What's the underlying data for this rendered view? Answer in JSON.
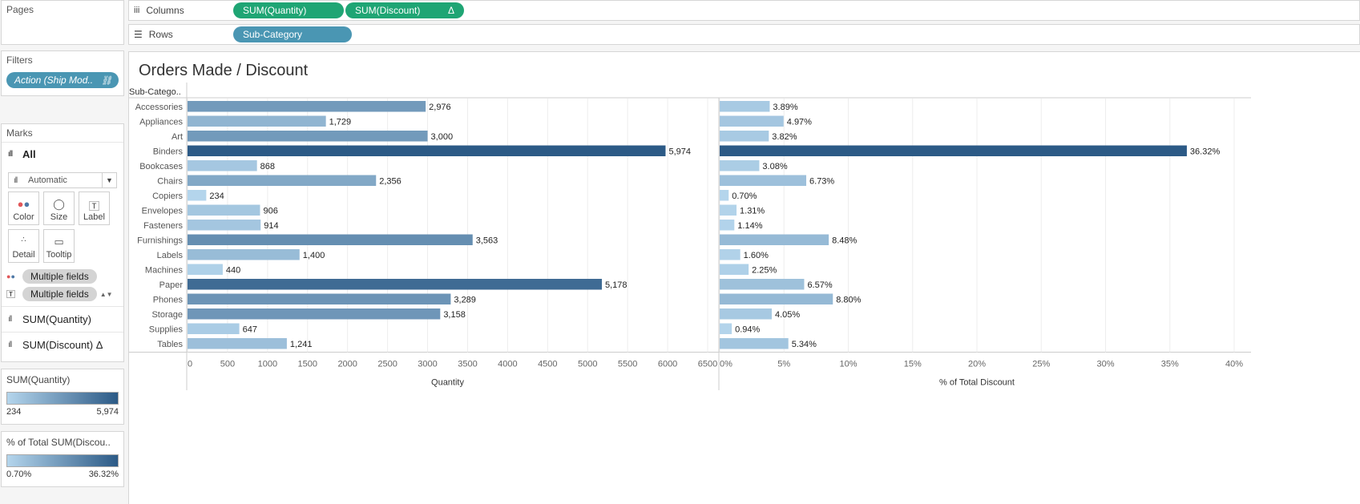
{
  "pages": {
    "title": "Pages"
  },
  "filters": {
    "title": "Filters",
    "pill": "Action (Ship Mod.."
  },
  "marks": {
    "title": "Marks",
    "all_label": "All",
    "mark_type": "Automatic",
    "buttons": [
      "Color",
      "Size",
      "Label",
      "Detail",
      "Tooltip"
    ],
    "multi_color": "Multiple fields",
    "multi_label": "Multiple fields",
    "field1": "SUM(Quantity)",
    "field2": "SUM(Discount) Δ"
  },
  "legend1": {
    "title": "SUM(Quantity)",
    "min": "234",
    "max": "5,974"
  },
  "legend2": {
    "title": "% of Total SUM(Discou..",
    "min": "0.70%",
    "max": "36.32%"
  },
  "shelves": {
    "columns_label": "Columns",
    "rows_label": "Rows",
    "col_pill1": "SUM(Quantity)",
    "col_pill2": "SUM(Discount)",
    "col_pill2_delta": "Δ",
    "row_pill": "Sub-Category"
  },
  "viz_title": "Orders Made / Discount",
  "chart_data": {
    "type": "bar",
    "row_header": "Sub-Catego..",
    "categories": [
      "Accessories",
      "Appliances",
      "Art",
      "Binders",
      "Bookcases",
      "Chairs",
      "Copiers",
      "Envelopes",
      "Fasteners",
      "Furnishings",
      "Labels",
      "Machines",
      "Paper",
      "Phones",
      "Storage",
      "Supplies",
      "Tables"
    ],
    "series": [
      {
        "name": "Quantity",
        "values": [
          2976,
          1729,
          3000,
          5974,
          868,
          2356,
          234,
          906,
          914,
          3563,
          1400,
          440,
          5178,
          3289,
          3158,
          647,
          1241
        ],
        "labels": [
          "2,976",
          "1,729",
          "3,000",
          "5,974",
          "868",
          "2,356",
          "234",
          "906",
          "914",
          "3,563",
          "1,400",
          "440",
          "5,178",
          "3,289",
          "3,158",
          "647",
          "1,241"
        ],
        "xlim": [
          0,
          6500
        ],
        "ticks": [
          "0",
          "500",
          "1000",
          "1500",
          "2000",
          "2500",
          "3000",
          "3500",
          "4000",
          "4500",
          "5000",
          "5500",
          "6000",
          "6500"
        ]
      },
      {
        "name": "% of Total Discount",
        "values": [
          3.89,
          4.97,
          3.82,
          36.32,
          3.08,
          6.73,
          0.7,
          1.31,
          1.14,
          8.48,
          1.6,
          2.25,
          6.57,
          8.8,
          4.05,
          0.94,
          5.34
        ],
        "labels": [
          "3.89%",
          "4.97%",
          "3.82%",
          "36.32%",
          "3.08%",
          "6.73%",
          "0.70%",
          "1.31%",
          "1.14%",
          "8.48%",
          "1.60%",
          "2.25%",
          "6.57%",
          "8.80%",
          "4.05%",
          "0.94%",
          "5.34%"
        ],
        "xlim": [
          0,
          40
        ],
        "ticks": [
          "0%",
          "5%",
          "10%",
          "15%",
          "20%",
          "25%",
          "30%",
          "35%",
          "40%"
        ]
      }
    ],
    "color_scale": [
      "#b4d5ec",
      "#2c5a86"
    ],
    "grid": true
  }
}
